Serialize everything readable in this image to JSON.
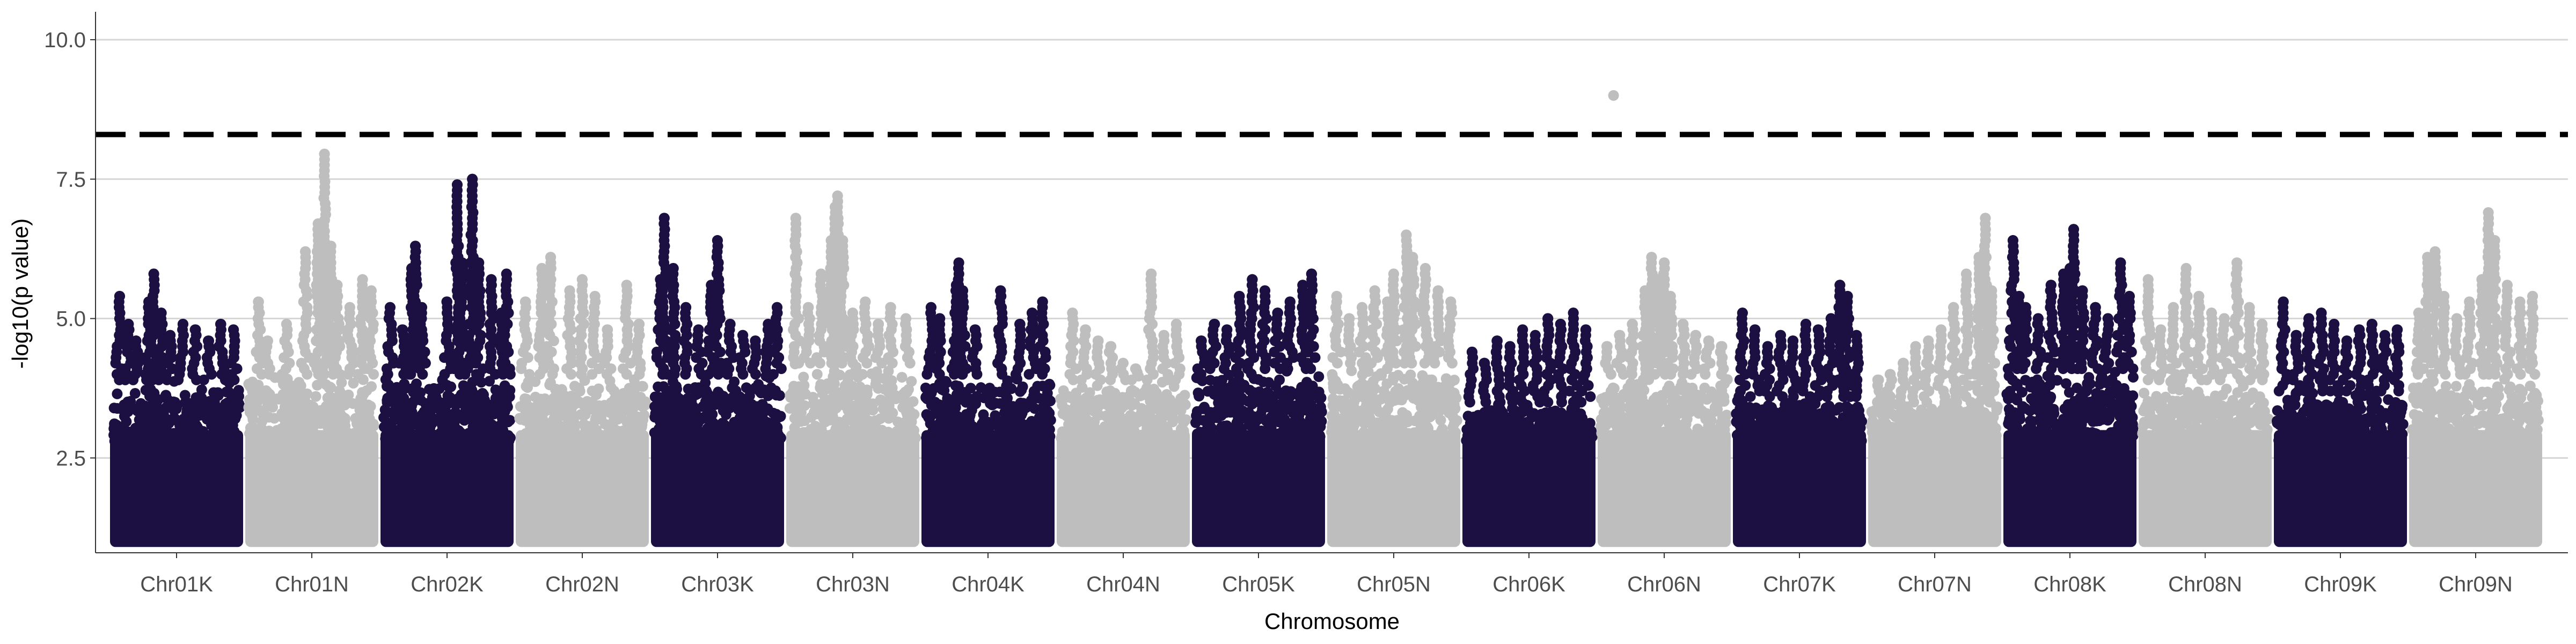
{
  "chart_data": {
    "type": "scatter",
    "title": "",
    "xlabel": "Chromosome",
    "ylabel": "-log10(p value)",
    "ylim": [
      0.8,
      10.5
    ],
    "yticks": [
      2.5,
      5.0,
      7.5,
      10.0
    ],
    "ytick_labels": [
      "2.5",
      "5.0",
      "7.5",
      "10.0"
    ],
    "grid": "horizontal major lines",
    "legend": "none",
    "threshold": {
      "value": 8.3,
      "style": "dashed",
      "color": "#000000"
    },
    "colors": {
      "dark": "#1c0f42",
      "light": "#bebebe"
    },
    "categories": [
      "Chr01K",
      "Chr01N",
      "Chr02K",
      "Chr02N",
      "Chr03K",
      "Chr03N",
      "Chr04K",
      "Chr04N",
      "Chr05K",
      "Chr05N",
      "Chr06K",
      "Chr06N",
      "Chr07K",
      "Chr07N",
      "Chr08K",
      "Chr08N",
      "Chr09K",
      "Chr09N"
    ],
    "series": [
      {
        "category": "Chr01K",
        "color": "#1c0f42",
        "floor_max": 3.9,
        "peaks": [
          [
            0.05,
            5.4
          ],
          [
            0.12,
            4.9
          ],
          [
            0.18,
            4.6
          ],
          [
            0.28,
            5.3
          ],
          [
            0.32,
            5.8
          ],
          [
            0.38,
            5.1
          ],
          [
            0.45,
            4.7
          ],
          [
            0.55,
            4.9
          ],
          [
            0.65,
            4.8
          ],
          [
            0.75,
            4.6
          ],
          [
            0.85,
            4.9
          ],
          [
            0.95,
            4.8
          ]
        ]
      },
      {
        "category": "Chr01N",
        "color": "#bebebe",
        "floor_max": 4.0,
        "peaks": [
          [
            0.08,
            5.3
          ],
          [
            0.15,
            4.6
          ],
          [
            0.3,
            4.9
          ],
          [
            0.45,
            6.2
          ],
          [
            0.55,
            6.7
          ],
          [
            0.6,
            7.95
          ],
          [
            0.65,
            6.3
          ],
          [
            0.7,
            5.6
          ],
          [
            0.8,
            5.2
          ],
          [
            0.9,
            5.7
          ],
          [
            0.97,
            5.5
          ]
        ]
      },
      {
        "category": "Chr02K",
        "color": "#1c0f42",
        "floor_max": 4.0,
        "peaks": [
          [
            0.05,
            5.2
          ],
          [
            0.15,
            4.8
          ],
          [
            0.22,
            5.9
          ],
          [
            0.25,
            6.3
          ],
          [
            0.3,
            5.2
          ],
          [
            0.5,
            5.3
          ],
          [
            0.58,
            7.4
          ],
          [
            0.62,
            6.0
          ],
          [
            0.7,
            7.5
          ],
          [
            0.75,
            6.0
          ],
          [
            0.85,
            5.7
          ],
          [
            0.93,
            5.1
          ],
          [
            0.97,
            5.8
          ]
        ]
      },
      {
        "category": "Chr02N",
        "color": "#bebebe",
        "floor_max": 4.0,
        "peaks": [
          [
            0.05,
            5.3
          ],
          [
            0.18,
            5.9
          ],
          [
            0.25,
            6.1
          ],
          [
            0.4,
            5.5
          ],
          [
            0.5,
            5.7
          ],
          [
            0.6,
            5.4
          ],
          [
            0.7,
            4.8
          ],
          [
            0.85,
            5.6
          ],
          [
            0.95,
            4.9
          ]
        ]
      },
      {
        "category": "Chr03K",
        "color": "#1c0f42",
        "floor_max": 4.0,
        "peaks": [
          [
            0.05,
            5.7
          ],
          [
            0.08,
            6.8
          ],
          [
            0.15,
            5.9
          ],
          [
            0.25,
            5.2
          ],
          [
            0.35,
            4.8
          ],
          [
            0.45,
            5.6
          ],
          [
            0.5,
            6.4
          ],
          [
            0.6,
            4.9
          ],
          [
            0.7,
            4.7
          ],
          [
            0.8,
            4.6
          ],
          [
            0.9,
            4.9
          ],
          [
            0.97,
            5.2
          ]
        ]
      },
      {
        "category": "Chr03N",
        "color": "#bebebe",
        "floor_max": 4.2,
        "peaks": [
          [
            0.05,
            6.8
          ],
          [
            0.15,
            5.2
          ],
          [
            0.25,
            5.8
          ],
          [
            0.33,
            6.4
          ],
          [
            0.36,
            7.0
          ],
          [
            0.38,
            7.2
          ],
          [
            0.42,
            6.4
          ],
          [
            0.5,
            5.1
          ],
          [
            0.6,
            5.3
          ],
          [
            0.7,
            4.9
          ],
          [
            0.8,
            5.2
          ],
          [
            0.92,
            5.0
          ]
        ]
      },
      {
        "category": "Chr04K",
        "color": "#1c0f42",
        "floor_max": 4.0,
        "peaks": [
          [
            0.05,
            5.2
          ],
          [
            0.12,
            5.0
          ],
          [
            0.25,
            5.6
          ],
          [
            0.27,
            6.0
          ],
          [
            0.3,
            5.5
          ],
          [
            0.4,
            4.8
          ],
          [
            0.6,
            5.5
          ],
          [
            0.75,
            4.9
          ],
          [
            0.85,
            5.1
          ],
          [
            0.93,
            5.3
          ]
        ]
      },
      {
        "category": "Chr04N",
        "color": "#bebebe",
        "floor_max": 3.9,
        "peaks": [
          [
            0.1,
            5.1
          ],
          [
            0.2,
            4.8
          ],
          [
            0.3,
            4.6
          ],
          [
            0.4,
            4.5
          ],
          [
            0.5,
            4.2
          ],
          [
            0.6,
            4.1
          ],
          [
            0.72,
            5.8
          ],
          [
            0.82,
            4.7
          ],
          [
            0.92,
            4.9
          ]
        ]
      },
      {
        "category": "Chr05K",
        "color": "#1c0f42",
        "floor_max": 4.1,
        "peaks": [
          [
            0.05,
            4.6
          ],
          [
            0.15,
            4.9
          ],
          [
            0.25,
            4.8
          ],
          [
            0.35,
            5.4
          ],
          [
            0.45,
            5.7
          ],
          [
            0.55,
            5.5
          ],
          [
            0.65,
            5.1
          ],
          [
            0.75,
            5.3
          ],
          [
            0.85,
            5.6
          ],
          [
            0.92,
            5.8
          ]
        ]
      },
      {
        "category": "Chr05N",
        "color": "#bebebe",
        "floor_max": 4.2,
        "peaks": [
          [
            0.05,
            5.4
          ],
          [
            0.15,
            5.0
          ],
          [
            0.25,
            5.2
          ],
          [
            0.35,
            5.5
          ],
          [
            0.45,
            5.3
          ],
          [
            0.5,
            5.8
          ],
          [
            0.6,
            6.5
          ],
          [
            0.65,
            6.1
          ],
          [
            0.75,
            5.9
          ],
          [
            0.85,
            5.5
          ],
          [
            0.95,
            5.3
          ]
        ]
      },
      {
        "category": "Chr06K",
        "color": "#1c0f42",
        "floor_max": 3.5,
        "peaks": [
          [
            0.05,
            4.4
          ],
          [
            0.15,
            4.2
          ],
          [
            0.25,
            4.6
          ],
          [
            0.35,
            4.5
          ],
          [
            0.45,
            4.8
          ],
          [
            0.55,
            4.7
          ],
          [
            0.65,
            5.0
          ],
          [
            0.75,
            4.9
          ],
          [
            0.85,
            5.1
          ],
          [
            0.95,
            4.8
          ]
        ]
      },
      {
        "category": "Chr06N",
        "color": "#bebebe",
        "floor_max": 4.0,
        "peaks": [
          [
            0.05,
            4.5
          ],
          [
            0.15,
            4.7
          ],
          [
            0.25,
            4.9
          ],
          [
            0.35,
            5.5
          ],
          [
            0.4,
            6.1
          ],
          [
            0.45,
            5.7
          ],
          [
            0.5,
            6.0
          ],
          [
            0.55,
            5.4
          ],
          [
            0.65,
            4.9
          ],
          [
            0.75,
            4.7
          ],
          [
            0.85,
            4.6
          ],
          [
            0.95,
            4.5
          ]
        ]
      },
      {
        "category": "Chr07K",
        "color": "#1c0f42",
        "floor_max": 3.6,
        "peaks": [
          [
            0.05,
            5.1
          ],
          [
            0.15,
            4.8
          ],
          [
            0.25,
            4.5
          ],
          [
            0.35,
            4.7
          ],
          [
            0.45,
            4.6
          ],
          [
            0.55,
            4.9
          ],
          [
            0.65,
            4.8
          ],
          [
            0.75,
            5.0
          ],
          [
            0.82,
            5.6
          ],
          [
            0.88,
            5.4
          ],
          [
            0.95,
            4.7
          ]
        ]
      },
      {
        "category": "Chr07N",
        "color": "#bebebe",
        "floor_max": 3.5,
        "peaks": [
          [
            0.05,
            3.9
          ],
          [
            0.15,
            4.0
          ],
          [
            0.25,
            4.2
          ],
          [
            0.35,
            4.5
          ],
          [
            0.45,
            4.6
          ],
          [
            0.55,
            4.8
          ],
          [
            0.65,
            5.2
          ],
          [
            0.75,
            5.8
          ],
          [
            0.85,
            6.1
          ],
          [
            0.9,
            6.8
          ],
          [
            0.95,
            5.5
          ]
        ]
      },
      {
        "category": "Chr08K",
        "color": "#1c0f42",
        "floor_max": 4.1,
        "peaks": [
          [
            0.05,
            6.4
          ],
          [
            0.1,
            5.4
          ],
          [
            0.15,
            5.2
          ],
          [
            0.25,
            5.0
          ],
          [
            0.35,
            5.6
          ],
          [
            0.45,
            5.8
          ],
          [
            0.5,
            5.9
          ],
          [
            0.53,
            6.6
          ],
          [
            0.6,
            5.5
          ],
          [
            0.7,
            5.2
          ],
          [
            0.8,
            5.0
          ],
          [
            0.9,
            6.0
          ],
          [
            0.97,
            5.4
          ]
        ]
      },
      {
        "category": "Chr08N",
        "color": "#bebebe",
        "floor_max": 3.9,
        "peaks": [
          [
            0.05,
            5.7
          ],
          [
            0.15,
            4.8
          ],
          [
            0.25,
            5.2
          ],
          [
            0.35,
            5.9
          ],
          [
            0.45,
            5.4
          ],
          [
            0.55,
            5.1
          ],
          [
            0.65,
            5.0
          ],
          [
            0.75,
            6.0
          ],
          [
            0.85,
            5.2
          ],
          [
            0.95,
            4.9
          ]
        ]
      },
      {
        "category": "Chr09K",
        "color": "#1c0f42",
        "floor_max": 3.7,
        "peaks": [
          [
            0.05,
            5.3
          ],
          [
            0.15,
            4.7
          ],
          [
            0.25,
            5.0
          ],
          [
            0.35,
            5.1
          ],
          [
            0.45,
            4.9
          ],
          [
            0.55,
            4.6
          ],
          [
            0.65,
            4.8
          ],
          [
            0.75,
            4.9
          ],
          [
            0.85,
            4.7
          ],
          [
            0.95,
            4.8
          ]
        ]
      },
      {
        "category": "Chr09N",
        "color": "#bebebe",
        "floor_max": 4.0,
        "peaks": [
          [
            0.05,
            5.1
          ],
          [
            0.12,
            6.1
          ],
          [
            0.18,
            6.2
          ],
          [
            0.25,
            5.4
          ],
          [
            0.35,
            5.0
          ],
          [
            0.45,
            5.3
          ],
          [
            0.55,
            5.7
          ],
          [
            0.6,
            6.9
          ],
          [
            0.65,
            6.4
          ],
          [
            0.75,
            5.6
          ],
          [
            0.85,
            5.3
          ],
          [
            0.95,
            5.4
          ]
        ]
      }
    ],
    "extra_points": [
      {
        "category": "Chr06N",
        "position": 0.1,
        "value": 9.0,
        "color": "#bebebe"
      }
    ]
  }
}
